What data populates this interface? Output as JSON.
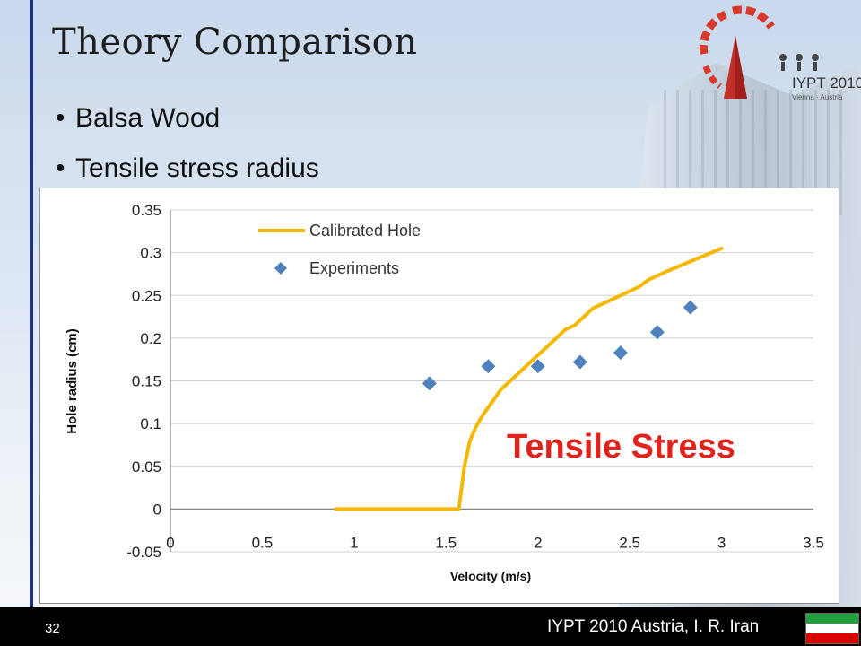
{
  "slide": {
    "title": "Theory Comparison",
    "bullets": [
      "Balsa Wood",
      "Tensile stress radius"
    ],
    "bullet_symbol": "•",
    "page_number": "32",
    "footer_text": "IYPT 2010 Austria, I. R. Iran",
    "logo": {
      "name": "IYPT 2010",
      "subtitle": "Vienna · Austria"
    },
    "flag_colors": [
      "#239f40",
      "#ffffff",
      "#da0000"
    ],
    "accent_color": "#1d2f8c"
  },
  "chart_data": {
    "type": "line",
    "xlabel": "Velocity (m/s)",
    "ylabel": "Hole radius (cm)",
    "xlim": [
      0,
      3.5
    ],
    "ylim": [
      -0.05,
      0.35
    ],
    "xticks": [
      0,
      0.5,
      1,
      1.5,
      2,
      2.5,
      3,
      3.5
    ],
    "yticks": [
      -0.05,
      0,
      0.05,
      0.1,
      0.15,
      0.2,
      0.25,
      0.3,
      0.35
    ],
    "xtick_labels": [
      "0",
      "0.5",
      "1",
      "1.5",
      "2",
      "2.5",
      "3",
      "3.5"
    ],
    "ytick_labels": [
      "-0.05",
      "0",
      "0.05",
      "0.1",
      "0.15",
      "0.2",
      "0.25",
      "0.3",
      "0.35"
    ],
    "grid": "horizontal",
    "legend": "top-left",
    "annotation": "Tensile Stress",
    "series": [
      {
        "name": "Calibrated Hole",
        "kind": "line",
        "color": "#f5b800",
        "x": [
          0.9,
          1.0,
          1.2,
          1.4,
          1.5,
          1.55,
          1.57,
          1.6,
          1.63,
          1.66,
          1.7,
          1.75,
          1.8,
          1.85,
          1.9,
          1.95,
          2.0,
          2.05,
          2.1,
          2.15,
          2.2,
          2.25,
          2.3,
          2.35,
          2.4,
          2.45,
          2.5,
          2.55,
          2.6,
          2.7,
          2.8,
          2.9,
          3.0
        ],
        "y": [
          0,
          0,
          0,
          0,
          0,
          0,
          0,
          0.05,
          0.08,
          0.095,
          0.11,
          0.125,
          0.14,
          0.15,
          0.16,
          0.17,
          0.18,
          0.19,
          0.2,
          0.21,
          0.215,
          0.225,
          0.235,
          0.24,
          0.245,
          0.25,
          0.255,
          0.26,
          0.268,
          0.278,
          0.287,
          0.296,
          0.305
        ]
      },
      {
        "name": "Experiments",
        "kind": "scatter",
        "color": "#4f81bd",
        "x": [
          1.41,
          1.73,
          2.0,
          2.23,
          2.45,
          2.65,
          2.83
        ],
        "y": [
          0.147,
          0.167,
          0.167,
          0.172,
          0.183,
          0.207,
          0.236
        ]
      }
    ]
  }
}
